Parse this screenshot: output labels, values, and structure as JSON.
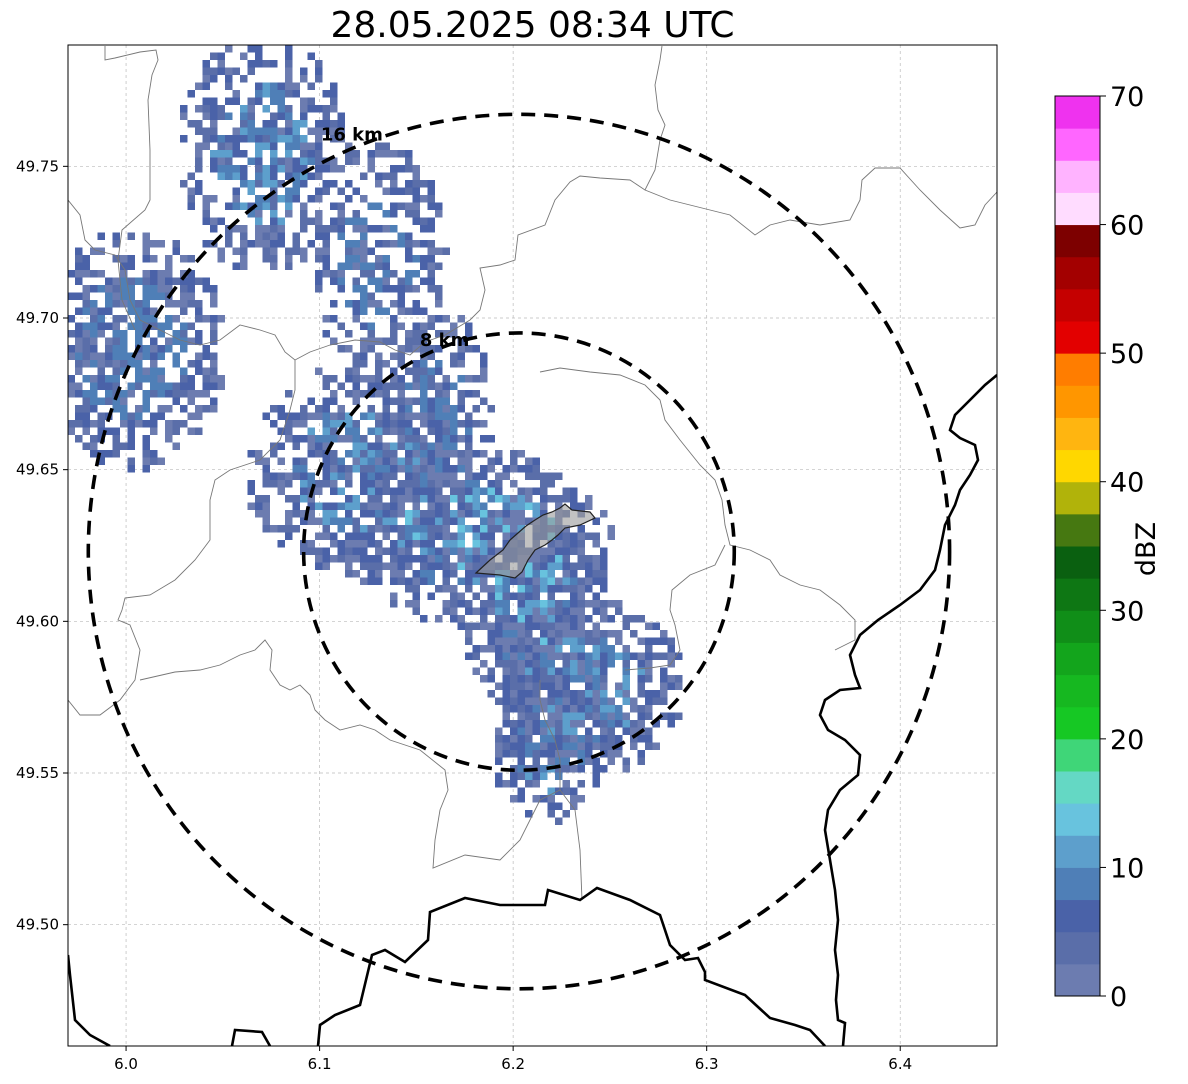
{
  "title": "28.05.2025 08:34 UTC",
  "map": {
    "x_ticks": [
      "6.0",
      "6.1",
      "6.2",
      "6.3",
      "6.4"
    ],
    "x_tick_values": [
      6.0,
      6.1,
      6.2,
      6.3,
      6.4
    ],
    "y_ticks": [
      "49.50",
      "49.55",
      "49.60",
      "49.65",
      "49.70",
      "49.75"
    ],
    "y_tick_values": [
      49.5,
      49.55,
      49.6,
      49.65,
      49.7,
      49.75
    ],
    "lon_range": [
      5.97,
      6.45
    ],
    "lat_range": [
      49.46,
      49.79
    ],
    "grid": true,
    "range_rings": [
      {
        "label": "8 km",
        "radius_km": 8
      },
      {
        "label": "16 km",
        "radius_km": 16
      }
    ],
    "radar_center": {
      "lon": 6.203,
      "lat": 49.623
    }
  },
  "colorbar": {
    "label": "dBZ",
    "ticks": [
      "0",
      "10",
      "20",
      "30",
      "40",
      "50",
      "60",
      "70"
    ],
    "range": [
      0,
      70
    ],
    "step": 2.5,
    "colors": [
      "#6c7cb0",
      "#5a6ea9",
      "#4a62a8",
      "#4f7fb7",
      "#5d9fcc",
      "#68c3de",
      "#64d8c4",
      "#3fd678",
      "#16c824",
      "#16b820",
      "#13a51c",
      "#108e18",
      "#0e7714",
      "#0a6010",
      "#467811",
      "#b1b30a",
      "#ffd700",
      "#ffb510",
      "#ff9600",
      "#ff7d00",
      "#e30000",
      "#c50000",
      "#a30000",
      "#7d0000",
      "#ffdcff",
      "#ffb3ff",
      "#ff66ff",
      "#ef32ef"
    ]
  },
  "colors": {
    "ring": "#000000",
    "grid": "#bbbbbb",
    "border_thin": "#777777",
    "border_thick": "#000000",
    "city_fill": "#999999"
  }
}
